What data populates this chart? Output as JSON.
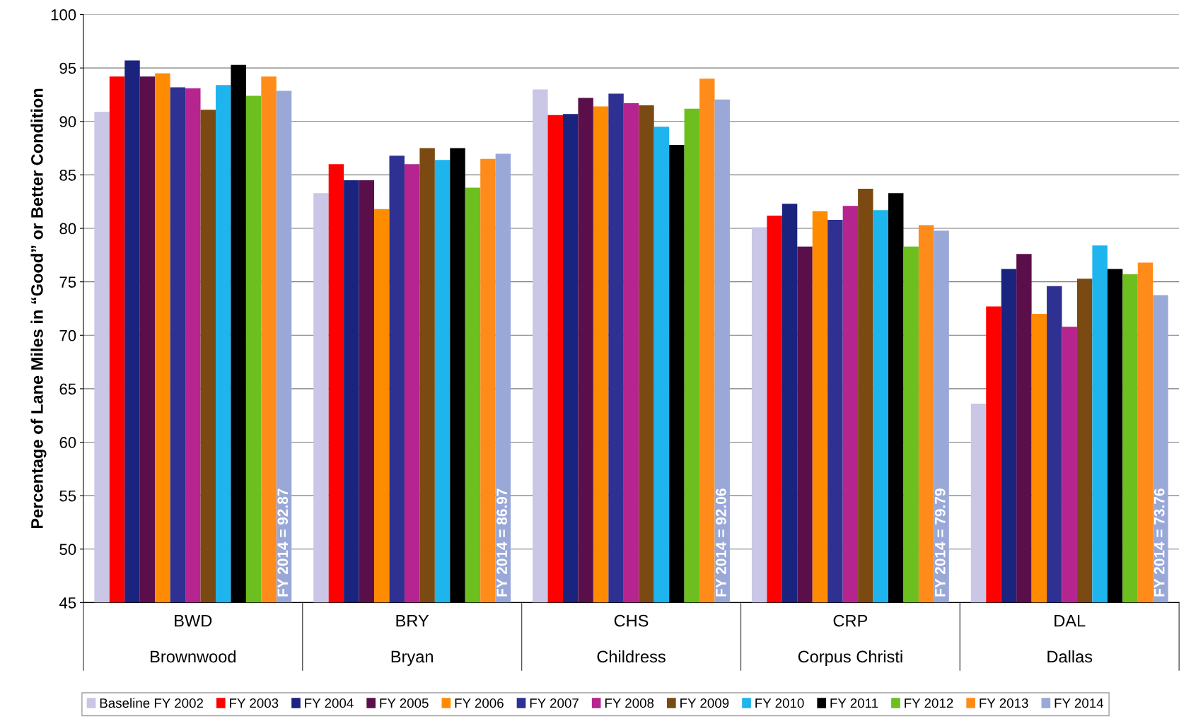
{
  "chart_data": {
    "type": "bar",
    "ylabel": "Percentage of Lane Miles in “Good” or Better Condition",
    "categories": [
      "BWD\n\nBrownwood",
      "BRY\n\nBryan",
      "CHS\n\nChildress",
      "CRP\n\nCorpus Christi",
      "DAL\n\nDallas"
    ],
    "series": [
      {
        "name": "Baseline FY 2002",
        "color": "#c9c6e6",
        "values": [
          90.9,
          83.3,
          93.0,
          80.1,
          63.6
        ]
      },
      {
        "name": "FY 2003",
        "color": "#ff0000",
        "values": [
          94.2,
          86.0,
          90.6,
          81.2,
          72.7
        ]
      },
      {
        "name": "FY 2004",
        "color": "#1a237e",
        "values": [
          95.7,
          84.5,
          90.7,
          82.3,
          76.2
        ]
      },
      {
        "name": "FY 2005",
        "color": "#5a0f4a",
        "values": [
          94.2,
          84.5,
          92.2,
          78.3,
          77.6
        ]
      },
      {
        "name": "FY 2006",
        "color": "#ff8c00",
        "values": [
          94.5,
          81.8,
          91.4,
          81.6,
          72.0
        ]
      },
      {
        "name": "FY 2007",
        "color": "#2e3192",
        "values": [
          93.2,
          86.8,
          92.6,
          80.8,
          74.6
        ]
      },
      {
        "name": "FY 2008",
        "color": "#b5248f",
        "values": [
          93.1,
          86.0,
          91.7,
          82.1,
          70.8
        ]
      },
      {
        "name": "FY 2009",
        "color": "#7a4a12",
        "values": [
          91.1,
          87.5,
          91.5,
          83.7,
          75.3
        ]
      },
      {
        "name": "FY 2010",
        "color": "#1eb4ee",
        "values": [
          93.4,
          86.4,
          89.5,
          81.7,
          78.4
        ]
      },
      {
        "name": "FY 2011",
        "color": "#000000",
        "values": [
          95.3,
          87.5,
          87.8,
          83.3,
          76.2
        ]
      },
      {
        "name": "FY 2012",
        "color": "#6cbf1e",
        "values": [
          92.4,
          83.8,
          91.2,
          78.3,
          75.7
        ]
      },
      {
        "name": "FY 2013",
        "color": "#ff8c1a",
        "values": [
          94.2,
          86.5,
          94.0,
          80.3,
          76.8
        ]
      },
      {
        "name": "FY 2014",
        "color": "#9aa8d8",
        "values": [
          92.87,
          86.97,
          92.06,
          79.79,
          73.76
        ],
        "value_labels": [
          "FY 2014 = 92.87",
          "FY 2014 = 86.97",
          "FY 2014 = 92.06",
          "FY 2014 = 79.79",
          "FY 2014 = 73.76"
        ]
      }
    ],
    "ylim": [
      45,
      100
    ],
    "yticks": [
      45,
      50,
      55,
      60,
      65,
      70,
      75,
      80,
      85,
      90,
      95,
      100
    ],
    "grid": "y",
    "legend": "bottom"
  }
}
